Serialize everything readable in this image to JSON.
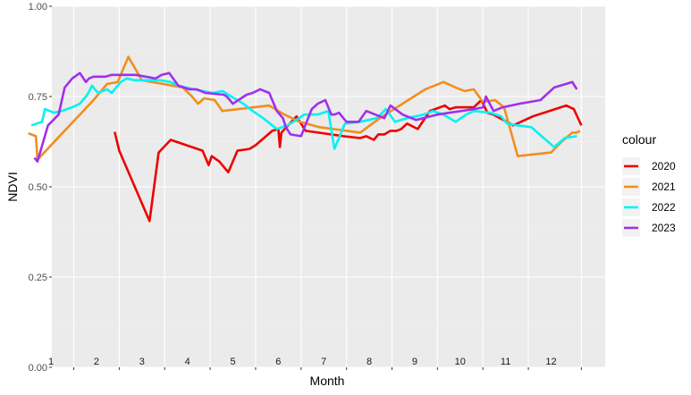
{
  "chart_data": {
    "type": "line",
    "xlabel": "Month",
    "ylabel": "NDVI",
    "ylim": [
      0,
      1
    ],
    "xlim": [
      1,
      366
    ],
    "y_ticks": [
      "0.00",
      "0.25",
      "0.50",
      "0.75",
      "1.00"
    ],
    "y_tick_values": [
      0,
      0.25,
      0.5,
      0.75,
      1
    ],
    "month_labels": [
      "1",
      "2",
      "3",
      "4",
      "5",
      "6",
      "7",
      "8",
      "9",
      "10",
      "11",
      "12"
    ],
    "month_label_days": [
      16,
      46,
      76,
      106,
      136,
      166,
      196,
      226,
      256,
      286,
      316,
      346
    ],
    "month_boundary_days": [
      1,
      31,
      61,
      91,
      121,
      151,
      181,
      211,
      241,
      271,
      301,
      331,
      366
    ],
    "grid": true,
    "legend_title": "colour",
    "legend_position": "right",
    "series": [
      {
        "name": "2020",
        "color": "#ee0000",
        "x": [
          58,
          61,
          81,
          87,
          95,
          116,
          120,
          122,
          127,
          133,
          139,
          147,
          151,
          162,
          166,
          167,
          168,
          178,
          184,
          209,
          220,
          224,
          229,
          232,
          236,
          240,
          244,
          247,
          251,
          258,
          266,
          276,
          279,
          283,
          288,
          295,
          300,
          304,
          308,
          321,
          334,
          356,
          361,
          366
        ],
        "y": [
          0.652,
          0.6,
          0.405,
          0.595,
          0.63,
          0.6,
          0.56,
          0.585,
          0.57,
          0.54,
          0.6,
          0.605,
          0.615,
          0.655,
          0.66,
          0.61,
          0.65,
          0.695,
          0.655,
          0.64,
          0.635,
          0.64,
          0.63,
          0.645,
          0.645,
          0.655,
          0.655,
          0.66,
          0.675,
          0.66,
          0.71,
          0.725,
          0.715,
          0.72,
          0.72,
          0.72,
          0.74,
          0.705,
          0.7,
          0.67,
          0.695,
          0.725,
          0.715,
          0.67
        ]
      },
      {
        "name": "2021",
        "color": "#f28e1c",
        "x": [
          1,
          6,
          7,
          44,
          53,
          60,
          67,
          76,
          103,
          109,
          113,
          117,
          124,
          129,
          160,
          170,
          180,
          193,
          220,
          233,
          263,
          275,
          283,
          289,
          295,
          301,
          309,
          315,
          324,
          346,
          353,
          360,
          363,
          365
        ],
        "y": [
          0.648,
          0.64,
          0.575,
          0.74,
          0.785,
          0.79,
          0.86,
          0.795,
          0.775,
          0.75,
          0.73,
          0.745,
          0.74,
          0.71,
          0.725,
          0.7,
          0.68,
          0.665,
          0.65,
          0.69,
          0.77,
          0.79,
          0.775,
          0.765,
          0.77,
          0.735,
          0.74,
          0.72,
          0.585,
          0.595,
          0.625,
          0.65,
          0.65,
          0.655
        ]
      },
      {
        "name": "2022",
        "color": "#00f2f2",
        "x": [
          3,
          10,
          12,
          18,
          23,
          30,
          35,
          40,
          43,
          47,
          53,
          56,
          62,
          66,
          71,
          80,
          88,
          95,
          100,
          110,
          123,
          129,
          135,
          143,
          149,
          156,
          165,
          172,
          178,
          183,
          192,
          199,
          203,
          210,
          220,
          231,
          237,
          243,
          251,
          262,
          268,
          275,
          283,
          290,
          295,
          306,
          313,
          317,
          324,
          333,
          348,
          355,
          363
        ],
        "y": [
          0.67,
          0.68,
          0.715,
          0.705,
          0.71,
          0.72,
          0.73,
          0.755,
          0.78,
          0.76,
          0.77,
          0.76,
          0.79,
          0.8,
          0.795,
          0.795,
          0.795,
          0.79,
          0.78,
          0.77,
          0.76,
          0.765,
          0.75,
          0.73,
          0.71,
          0.69,
          0.66,
          0.67,
          0.685,
          0.7,
          0.7,
          0.71,
          0.605,
          0.675,
          0.68,
          0.69,
          0.715,
          0.68,
          0.69,
          0.7,
          0.71,
          0.7,
          0.68,
          0.7,
          0.71,
          0.705,
          0.695,
          0.675,
          0.67,
          0.665,
          0.61,
          0.635,
          0.64
        ]
      },
      {
        "name": "2023",
        "color": "#a02ff0",
        "x": [
          5,
          7,
          14,
          21,
          25,
          30,
          35,
          39,
          41,
          44,
          52,
          56,
          72,
          85,
          89,
          94,
          100,
          107,
          112,
          118,
          130,
          132,
          136,
          145,
          149,
          154,
          160,
          165,
          169,
          171,
          174,
          181,
          188,
          192,
          197,
          201,
          203,
          206,
          211,
          219,
          224,
          233,
          236,
          240,
          248,
          257,
          271,
          295,
          301,
          303,
          308,
          314,
          325,
          339,
          348,
          356,
          360,
          363
        ],
        "y": [
          0.58,
          0.57,
          0.67,
          0.7,
          0.775,
          0.8,
          0.815,
          0.79,
          0.8,
          0.805,
          0.805,
          0.81,
          0.81,
          0.8,
          0.81,
          0.815,
          0.78,
          0.77,
          0.77,
          0.76,
          0.755,
          0.75,
          0.73,
          0.755,
          0.76,
          0.77,
          0.76,
          0.71,
          0.69,
          0.665,
          0.645,
          0.64,
          0.715,
          0.73,
          0.74,
          0.7,
          0.7,
          0.705,
          0.68,
          0.68,
          0.71,
          0.695,
          0.69,
          0.725,
          0.7,
          0.685,
          0.7,
          0.715,
          0.72,
          0.75,
          0.71,
          0.72,
          0.73,
          0.74,
          0.775,
          0.785,
          0.79,
          0.77
        ]
      }
    ]
  }
}
